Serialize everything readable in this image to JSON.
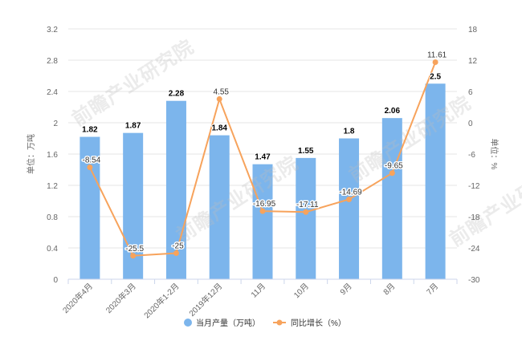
{
  "chart_data": {
    "type": "bar",
    "categories": [
      "2020年4月",
      "2020年3月",
      "2020年1-2月",
      "2019年12月",
      "11月",
      "10月",
      "9月",
      "8月",
      "7月"
    ],
    "series": [
      {
        "name": "当月产量（万吨）",
        "type": "bar",
        "axis": "left",
        "values": [
          1.82,
          1.87,
          2.28,
          1.84,
          1.47,
          1.55,
          1.8,
          2.06,
          2.5
        ]
      },
      {
        "name": "同比增长（%）",
        "type": "line",
        "axis": "right",
        "values": [
          -8.54,
          -25.5,
          -25,
          4.55,
          -16.95,
          -17.11,
          -14.69,
          -9.65,
          11.61
        ]
      }
    ],
    "y_left": {
      "label": "单位：万吨",
      "range": [
        0,
        3.2
      ],
      "ticks": [
        "0",
        "0.4",
        "0.8",
        "1.2",
        "1.6",
        "2",
        "2.4",
        "2.8",
        "3.2"
      ]
    },
    "y_right": {
      "label": "单位：%",
      "range": [
        -30,
        18
      ],
      "ticks": [
        "-30",
        "-24",
        "-18",
        "-12",
        "-6",
        "0",
        "6",
        "12",
        "18"
      ]
    },
    "data_labels": true,
    "grid": true,
    "legend_position": "bottom-center"
  },
  "colors": {
    "bar": "#7cb5ec",
    "line": "#f7a35c"
  },
  "watermark": "前瞻产业研究院"
}
